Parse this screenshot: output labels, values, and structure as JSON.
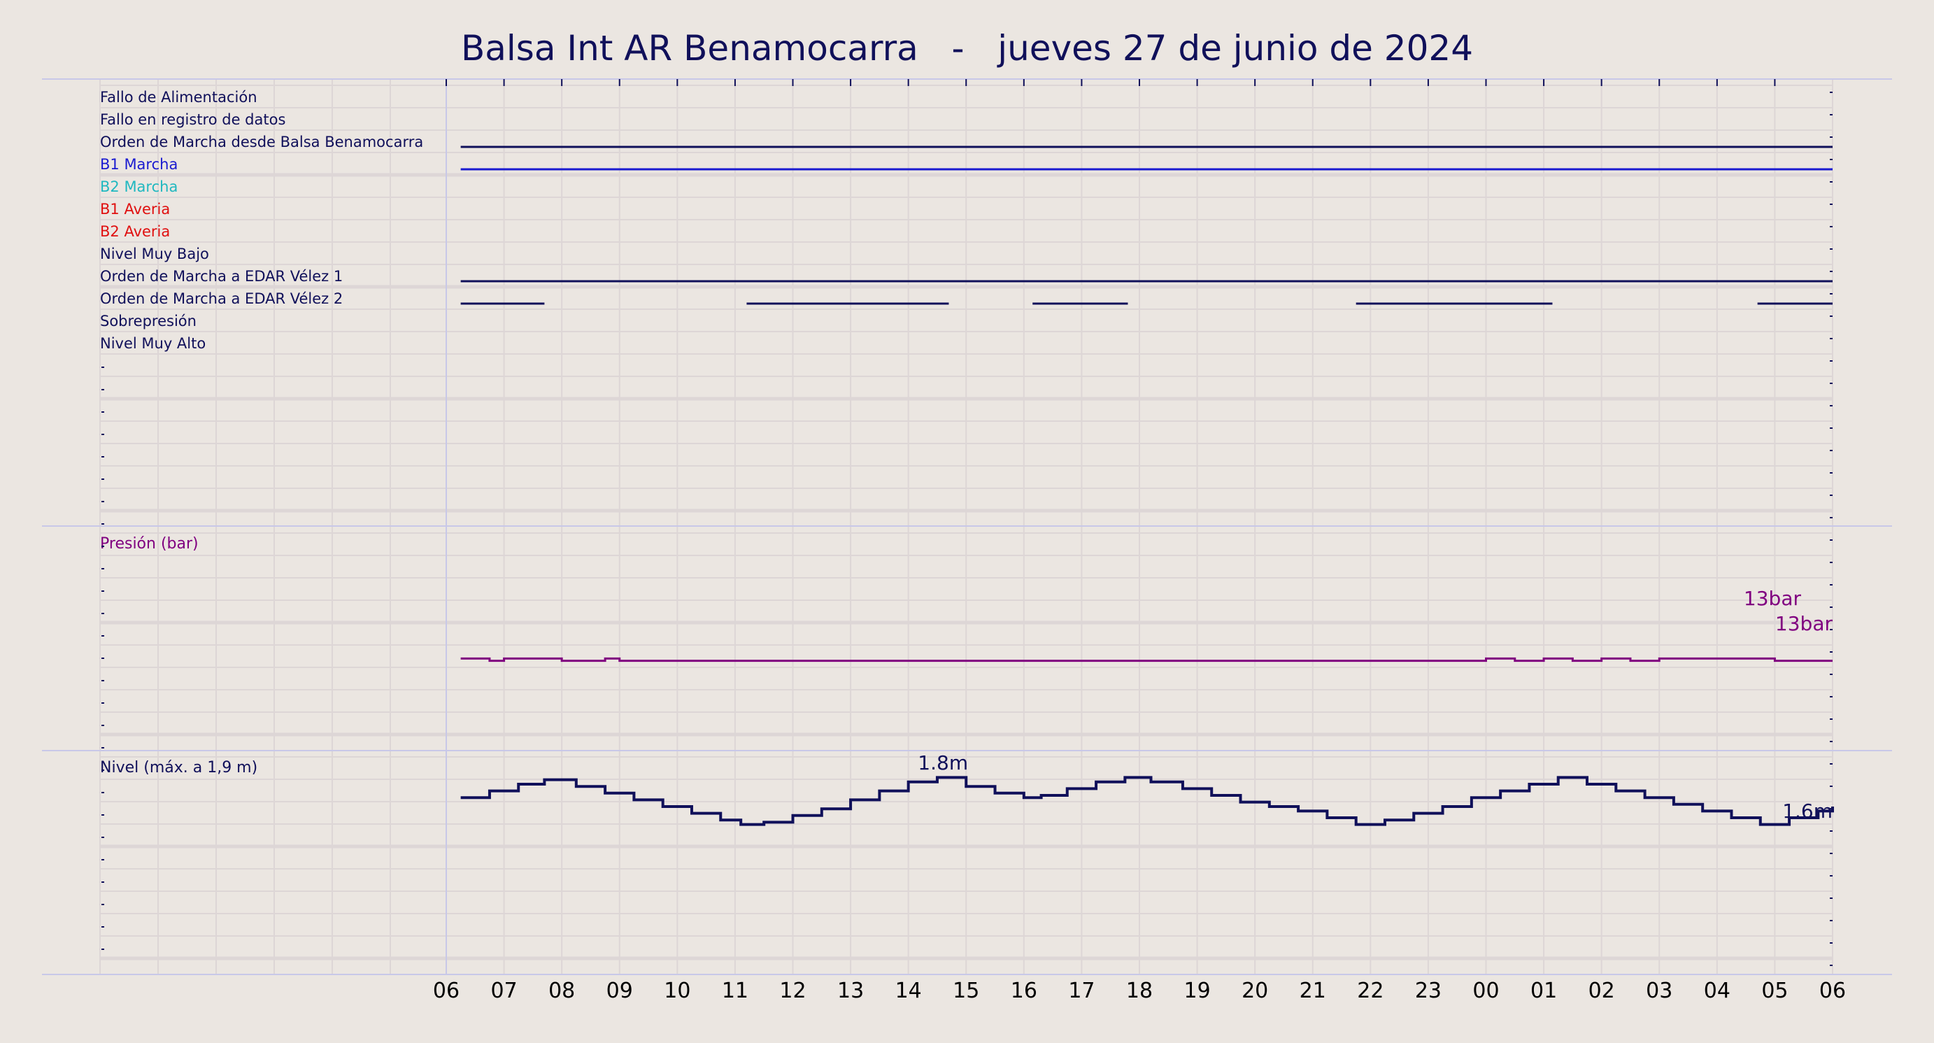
{
  "title": "Balsa Int AR Benamocarra   -   jueves 27 de junio de 2024",
  "x_ticks": [
    "06",
    "07",
    "08",
    "09",
    "10",
    "11",
    "12",
    "13",
    "14",
    "15",
    "16",
    "17",
    "18",
    "19",
    "20",
    "21",
    "22",
    "23",
    "00",
    "01",
    "02",
    "03",
    "04",
    "05",
    "06"
  ],
  "colors": {
    "background": "#ebe6e1",
    "navy": "#10105a",
    "blue": "#1a1ad0",
    "cyan": "#20b8c0",
    "red": "#e01010",
    "purple": "#800080",
    "grid": "#ddd6d6",
    "separator": "#c8c8e8"
  },
  "chart_data": [
    {
      "type": "line",
      "panel": "signals",
      "x_start": "06",
      "x_end": "06",
      "x_unit": "hour",
      "channels": [
        {
          "name": "Fallo de Alimentación",
          "color": "#10105a",
          "on": []
        },
        {
          "name": "Fallo en registro de datos",
          "color": "#10105a",
          "on": []
        },
        {
          "name": "Orden de Marcha desde Balsa Benamocarra",
          "color": "#10105a",
          "on": [
            [
              0.25,
              24
            ]
          ]
        },
        {
          "name": "B1 Marcha",
          "color": "#1a1ad0",
          "on": [
            [
              0.25,
              24
            ]
          ]
        },
        {
          "name": "B2 Marcha",
          "color": "#20b8c0",
          "on": []
        },
        {
          "name": "B1 Averia",
          "color": "#e01010",
          "on": []
        },
        {
          "name": "B2 Averia",
          "color": "#e01010",
          "on": []
        },
        {
          "name": "Nivel Muy Bajo",
          "color": "#10105a",
          "on": []
        },
        {
          "name": "Orden de Marcha a EDAR Vélez 1",
          "color": "#10105a",
          "on": [
            [
              0.25,
              24
            ]
          ]
        },
        {
          "name": "Orden de Marcha a EDAR Vélez 2",
          "color": "#10105a",
          "on": [
            [
              0.25,
              1.7
            ],
            [
              5.2,
              8.7
            ],
            [
              10.15,
              11.8
            ],
            [
              15.75,
              19.15
            ],
            [
              22.7,
              24
            ]
          ]
        },
        {
          "name": "Sobrepresión",
          "color": "#10105a",
          "on": []
        },
        {
          "name": "Nivel Muy Alto",
          "color": "#10105a",
          "on": []
        }
      ]
    },
    {
      "type": "line",
      "panel": "pressure",
      "label": "Presión (bar)",
      "color": "#800080",
      "x_hours": [
        0.25,
        0.5,
        0.75,
        1.0,
        1.25,
        1.5,
        1.75,
        2.0,
        2.25,
        2.5,
        2.75,
        3.0,
        4,
        6,
        8,
        10,
        12,
        14,
        16,
        17.5,
        18,
        18.5,
        19,
        19.5,
        20,
        20.5,
        21,
        21.5,
        22,
        22.5,
        22.75,
        23,
        23.25,
        23.5,
        23.75,
        24
      ],
      "y": [
        13.05,
        13.05,
        13.0,
        13.05,
        13.05,
        13.05,
        13.05,
        13.0,
        13.0,
        13.0,
        13.05,
        13.0,
        13.0,
        13.0,
        13.0,
        13.0,
        13.0,
        13.0,
        13.0,
        13.0,
        13.05,
        13.0,
        13.05,
        13.0,
        13.05,
        13.0,
        13.05,
        13.05,
        13.05,
        13.05,
        13.05,
        13.0,
        13.0,
        13.0,
        13.0,
        13.0
      ],
      "annotations": [
        "13bar",
        "13bar"
      ],
      "ylim": [
        11,
        16
      ]
    },
    {
      "type": "line",
      "panel": "level",
      "label": "Nivel (máx. a 1,9 m)",
      "color": "#10105a",
      "x_hours": [
        0.25,
        0.75,
        1.25,
        1.7,
        2.25,
        2.75,
        3.25,
        3.75,
        4.25,
        4.75,
        5.1,
        5.5,
        6.0,
        6.5,
        7.0,
        7.5,
        8.0,
        8.5,
        9.0,
        9.5,
        10.0,
        10.3,
        10.75,
        11.25,
        11.75,
        12.2,
        12.75,
        13.25,
        13.75,
        14.25,
        14.75,
        15.25,
        15.75,
        16.25,
        16.75,
        17.25,
        17.75,
        18.25,
        18.75,
        19.25,
        19.75,
        20.25,
        20.75,
        21.25,
        21.75,
        22.25,
        22.75,
        23.25,
        23.75,
        24
      ],
      "y": [
        1.69,
        1.72,
        1.75,
        1.77,
        1.74,
        1.71,
        1.68,
        1.65,
        1.62,
        1.59,
        1.57,
        1.58,
        1.61,
        1.64,
        1.68,
        1.72,
        1.76,
        1.78,
        1.74,
        1.71,
        1.69,
        1.7,
        1.73,
        1.76,
        1.78,
        1.76,
        1.73,
        1.7,
        1.67,
        1.65,
        1.63,
        1.6,
        1.57,
        1.59,
        1.62,
        1.65,
        1.69,
        1.72,
        1.75,
        1.78,
        1.75,
        1.72,
        1.69,
        1.66,
        1.63,
        1.6,
        1.57,
        1.6,
        1.63,
        1.65
      ],
      "annotations": [
        "1.8m",
        "1.6m"
      ],
      "ylim": [
        0.9,
        1.9
      ]
    }
  ]
}
